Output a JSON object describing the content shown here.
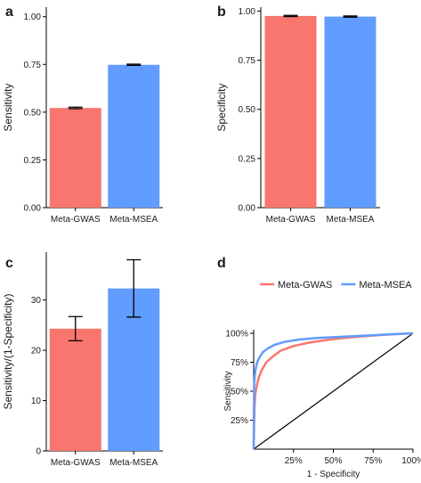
{
  "chart_data": [
    {
      "panel_label": "a",
      "type": "bar",
      "categories": [
        "Meta-GWAS",
        "Meta-MSEA"
      ],
      "values": [
        0.522,
        0.748
      ],
      "errors": [
        0.004,
        0.003
      ],
      "colors": [
        "#F8766D",
        "#619CFF"
      ],
      "ylabel": "Sensitivity",
      "ylim": [
        0,
        1.05
      ],
      "yticks": [
        0,
        0.25,
        0.5,
        0.75,
        1.0
      ],
      "ytick_labels": [
        "0.00",
        "0.25",
        "0.50",
        "0.75",
        "1.00"
      ]
    },
    {
      "panel_label": "b",
      "type": "bar",
      "categories": [
        "Meta-GWAS",
        "Meta-MSEA"
      ],
      "values": [
        0.975,
        0.972
      ],
      "errors": [
        0.003,
        0.003
      ],
      "colors": [
        "#F8766D",
        "#619CFF"
      ],
      "ylabel": "Specificity",
      "ylim": [
        0,
        1.02
      ],
      "yticks": [
        0,
        0.25,
        0.5,
        0.75,
        1.0
      ],
      "ytick_labels": [
        "0.00",
        "0.25",
        "0.50",
        "0.75",
        "1.00"
      ]
    },
    {
      "panel_label": "c",
      "type": "bar",
      "categories": [
        "Meta-GWAS",
        "Meta-MSEA"
      ],
      "values": [
        24.3,
        32.3
      ],
      "errors": [
        2.4,
        5.7
      ],
      "colors": [
        "#F8766D",
        "#619CFF"
      ],
      "ylabel": "Sensitivity/(1-Specificity)",
      "ylim": [
        0,
        39.5
      ],
      "yticks": [
        0,
        10,
        20,
        30
      ],
      "ytick_labels": [
        "0",
        "10",
        "20",
        "30"
      ]
    },
    {
      "panel_label": "d",
      "type": "line",
      "xlabel": "1 - Specificity",
      "ylabel": "Sensitivity",
      "xlim": [
        0,
        1.0
      ],
      "ylim": [
        0,
        1.0
      ],
      "xticks": [
        0.25,
        0.5,
        0.75,
        1.0
      ],
      "xtick_labels": [
        "25%",
        "50%",
        "75%",
        "100%"
      ],
      "yticks": [
        0.25,
        0.5,
        0.75,
        1.0
      ],
      "ytick_labels": [
        "25%",
        "50%",
        "75%",
        "100%"
      ],
      "legend_position": "top",
      "diagonal": true,
      "series": [
        {
          "name": "Meta-GWAS",
          "color": "#F8766D",
          "x": [
            0,
            0.005,
            0.01,
            0.02,
            0.03,
            0.05,
            0.08,
            0.12,
            0.17,
            0.25,
            0.35,
            0.5,
            0.65,
            0.8,
            0.9,
            1.0
          ],
          "y": [
            0,
            0.35,
            0.47,
            0.55,
            0.61,
            0.68,
            0.75,
            0.8,
            0.85,
            0.89,
            0.92,
            0.95,
            0.97,
            0.985,
            0.993,
            1.0
          ]
        },
        {
          "name": "Meta-MSEA",
          "color": "#619CFF",
          "x": [
            0,
            0.003,
            0.008,
            0.015,
            0.025,
            0.04,
            0.06,
            0.09,
            0.13,
            0.19,
            0.28,
            0.4,
            0.55,
            0.7,
            0.85,
            1.0
          ],
          "y": [
            0,
            0.55,
            0.65,
            0.71,
            0.76,
            0.8,
            0.84,
            0.87,
            0.9,
            0.925,
            0.945,
            0.96,
            0.97,
            0.98,
            0.99,
            1.0
          ]
        }
      ]
    }
  ]
}
